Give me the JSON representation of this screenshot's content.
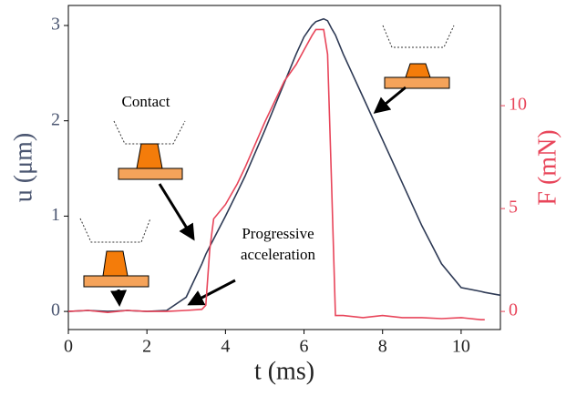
{
  "chart_data": {
    "type": "line",
    "x_label": "t (ms)",
    "y_label": "u (μm)",
    "y2_label": "F (mN)",
    "annotations": [
      "Contact",
      "Progressive",
      "acceleration"
    ],
    "x": [
      0,
      0.5,
      1,
      1.5,
      2,
      2.5,
      3,
      3.4,
      3.5,
      3.6,
      3.7,
      4,
      4.3,
      4.5,
      5,
      5.5,
      5.8,
      6,
      6.2,
      6.3,
      6.5,
      6.6,
      6.7,
      6.8,
      7,
      7.5,
      8,
      8.5,
      9,
      9.5,
      10,
      10.5,
      10.6,
      11
    ],
    "series": [
      {
        "name": "u",
        "color": "#2e3a55",
        "values": [
          0,
          0.01,
          0,
          0.01,
          0,
          0.01,
          0.15,
          0.5,
          0.6,
          0.68,
          0.76,
          1.0,
          1.25,
          1.42,
          1.9,
          2.4,
          2.7,
          2.88,
          3.0,
          3.04,
          3.07,
          3.05,
          2.97,
          2.9,
          2.7,
          2.25,
          1.8,
          1.35,
          0.9,
          0.5,
          0.25,
          0.21,
          0.2,
          0.17
        ]
      },
      {
        "name": "F",
        "color": "#e8455a",
        "axis": "y2",
        "values": [
          0,
          0.05,
          -0.05,
          0.05,
          0,
          0,
          0.05,
          0.1,
          0.3,
          3,
          4.5,
          5.2,
          6.2,
          7,
          9.2,
          11.2,
          12,
          12.7,
          13.4,
          13.7,
          13.7,
          12.5,
          6.3,
          -0.2,
          -0.2,
          -0.3,
          -0.2,
          -0.3,
          -0.3,
          -0.35,
          -0.3,
          -0.4,
          -0.4,
          null
        ]
      }
    ],
    "xlim": [
      0,
      11
    ],
    "xticks": [
      0,
      2,
      4,
      6,
      8,
      10
    ],
    "ylim": [
      -0.19,
      3.21
    ],
    "yticks": [
      0,
      1,
      2,
      3
    ],
    "y2lim": [
      -0.88,
      14.87
    ],
    "y2ticks": [
      0,
      5,
      10
    ],
    "grid": false
  }
}
